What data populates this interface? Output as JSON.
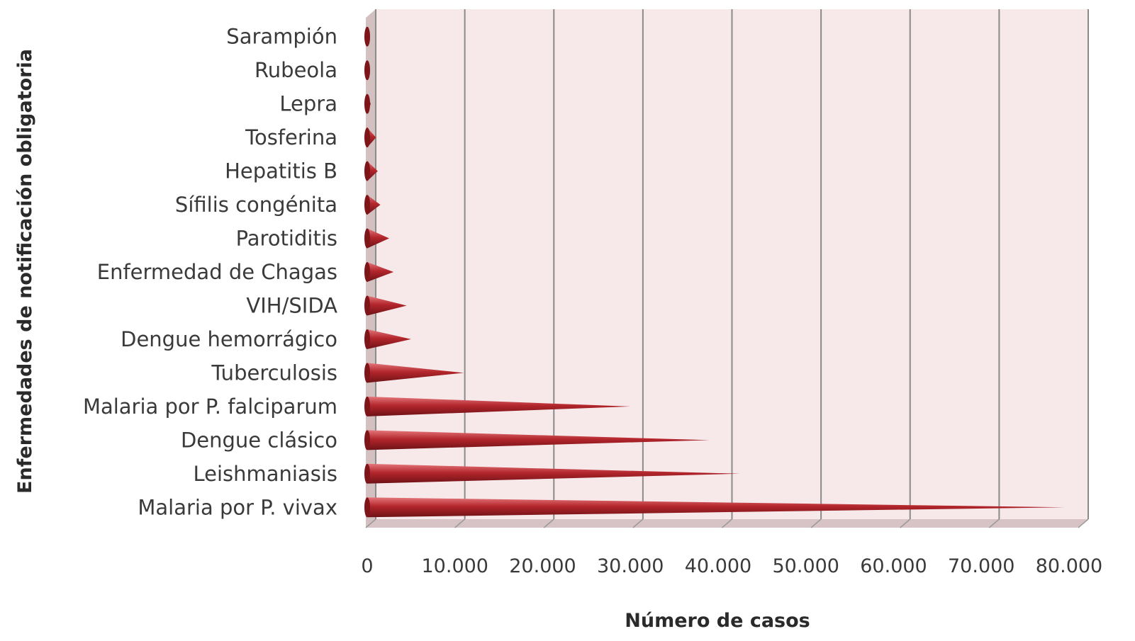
{
  "chart_data": {
    "type": "bar",
    "orientation": "horizontal",
    "bar_shape": "cone",
    "title": "",
    "xlabel": "Número de casos",
    "ylabel": "Enfermedades de notificación obligatoria",
    "xlim": [
      0,
      80000
    ],
    "x_ticks": [
      0,
      10000,
      20000,
      30000,
      40000,
      50000,
      60000,
      70000,
      80000
    ],
    "x_tick_labels": [
      "0",
      "10.000",
      "20.000",
      "30.000",
      "40.000",
      "50.000",
      "60.000",
      "70.000",
      "80.000"
    ],
    "grid": "vertical",
    "legend": "none",
    "categories": [
      "Sarampión",
      "Rubeola",
      "Lepra",
      "Tosferina",
      "Hepatitis B",
      "Sífilis congénita",
      "Parotiditis",
      "Enfermedad de Chagas",
      "VIH/SIDA",
      "Dengue hemorrágico",
      "Tuberculosis",
      "Malaria por P. falciparum",
      "Dengue clásico",
      "Leishmaniasis",
      "Malaria por P. vivax"
    ],
    "values": [
      300,
      300,
      400,
      1000,
      1200,
      1500,
      2500,
      3000,
      4500,
      5000,
      11000,
      30000,
      39000,
      42500,
      79500
    ],
    "colors": {
      "bar": "#b3262c",
      "bar_dark": "#7e1519",
      "bar_light": "#e06a6e",
      "plot_bg": "#f7e9ea",
      "wall": "#d9c8c9",
      "grid": "#8a8a8a"
    }
  }
}
